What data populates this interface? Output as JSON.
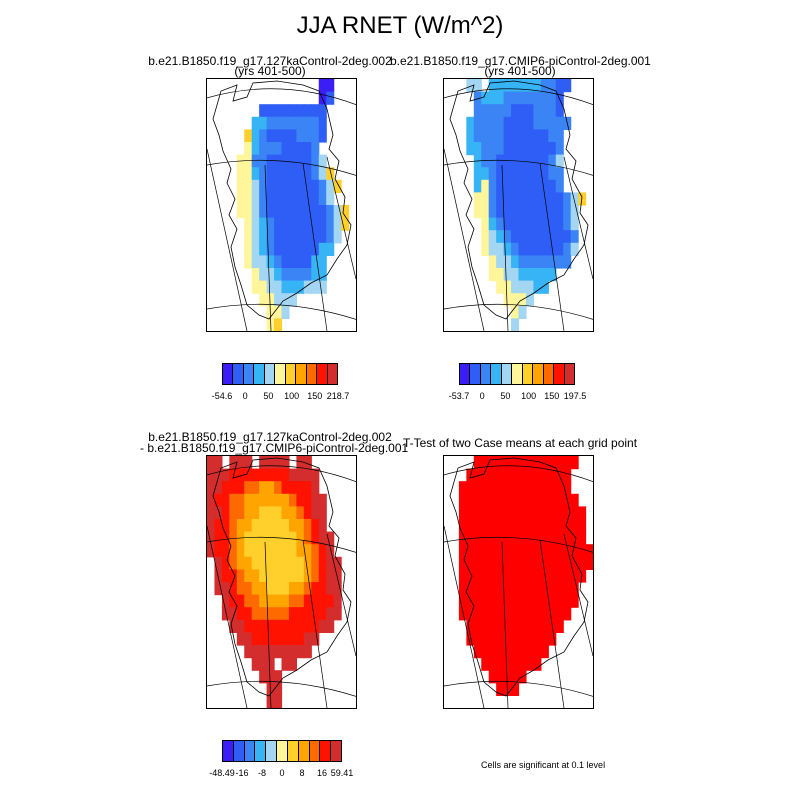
{
  "title": "JJA RNET (W/m^2)",
  "palettes": {
    "abs": [
      "#3a1ef5",
      "#2f5ef7",
      "#3b84f5",
      "#37b4f5",
      "#a2d6f2",
      "#fff59a",
      "#ffd02c",
      "#ffa400",
      "#ff6a00",
      "#ff1200",
      "#d42d2d"
    ],
    "diff": [
      "#3a1ef5",
      "#2f5ef7",
      "#3b84f5",
      "#37b4f5",
      "#a2d6f2",
      "#fff59a",
      "#ffd02c",
      "#ffa400",
      "#ff6a00",
      "#ff1200",
      "#d42d2d"
    ],
    "sig": "#ff0000"
  },
  "chart_data": [
    {
      "type": "heatmap",
      "title": "b.e21.B1850.f19_g17.127kaControl-2deg.002",
      "subtitle": "(yrs 401-500)",
      "colorbar_labels": [
        "-54.6",
        "0",
        "50",
        "100",
        "150",
        "218.7"
      ],
      "rows": [
        "...............00...",
        "...............01...",
        ".......111111111....",
        "......3322222221....",
        ".....63211112221....",
        ".....5322211112....",
        "....552211111124....",
        "....5532111111246...",
        "....55421111111246..",
        "....5542111111124...",
        "....554211111111246.",
        ".....54321111111246.",
        ".....5432111111124..",
        ".....543211111133...",
        ".....54432111133....",
        "......5443222233....",
        "......5544333444....",
        ".......55444........",
        "........554.........",
        "........56.........."
      ]
    },
    {
      "type": "heatmap",
      "title": "b.e21.B1850.f19_g17.CMIP6-piControl-2deg.001",
      "subtitle": "(yrs 401-500)",
      "colorbar_labels": [
        "-53.7",
        "0",
        "50",
        "100",
        "150",
        "197.5"
      ],
      "rows": [
        "...44.33333332211...",
        "....233322222221....",
        "....222221112221....",
        "...32222111122222...",
        "...3222211111122....",
        "...3322211111112....",
        "....322111111124....",
        "....332111111122....",
        "....352111111112....",
        "....552111111111246.",
        "....55211111111124..",
        ".....5321111111124..",
        ".....5432111111112..",
        ".....5443211111124..",
        "......54432222222...",
        "......554433333.....",
        ".......5544433......",
        "........5554........",
        ".........54.........",
        ".........4.........."
      ]
    },
    {
      "type": "heatmap",
      "title": "b.e21.B1850.f19_g17.127kaControl-2deg.002",
      "subtitle": "- b.e21.B1850.f19_g17.CMIP6-piControl-2deg.001",
      "colorbar_labels": [
        "-48.49",
        "-16",
        "-8",
        "0",
        "8",
        "16",
        "59.41"
      ],
      "rows": [
        "aa.aaa.aaaa.aa......",
        "aaa99999999aaaa.....",
        "aa999887789999a.....",
        "a9988777777899aa....",
        "aa988776667789aa....",
        "a99877666667789a....",
        "a99876666666789aa...",
        "a998766666667789a...",
        ".a98776666666789aa..",
        ".a99877666666789aa..",
        ".aa9887766677899aa..",
        "..a99887777889999a..",
        "..aa998888899999aa..",
        "...aa9999999999aa...",
        "....aa9999999aa.....",
        ".....aaaaaaaaa......",
        "......aaa.aa........",
        ".......aaa..........",
        "........aa..........",
        "........aa.........."
      ]
    },
    {
      "type": "heatmap",
      "title": "T-Test of two Case means at each grid point",
      "subtitle": "",
      "note": "Cells are significant at 0.1 level",
      "rows": [
        "....SSSSSSSSSSSSSS..",
        "...SSSSSSSSSSSSSS...",
        "..SSSSSSSSSSSSSSS...",
        "..SSSSSSSSSSSSSSSS..",
        "..SSSSSSSSSSSSSSSSS.",
        "..SSSSSSSSSSSSSSSSS.",
        "..SSSSSSSSSSSSSSSSS.",
        "..SSSSSSSSSSSSSSSSSS",
        "..SSSSSSSSSSSSSSSSSS",
        "..SSSSSSSSSSSSSSSSS.",
        "..SSSSSSSSSSSSSSSS..",
        "..SSSSSSSSSSSSSSSS..",
        "..SSSSSSSSSSSSSSS...",
        "...SSSSSSSSSSSSS....",
        "...SSSSSSSSSSSS.....",
        "....SSSSSSSSSS......",
        ".....SSSSSSSS.......",
        "......SSSSS.........",
        ".......SSS..........",
        "....................."
      ]
    }
  ]
}
